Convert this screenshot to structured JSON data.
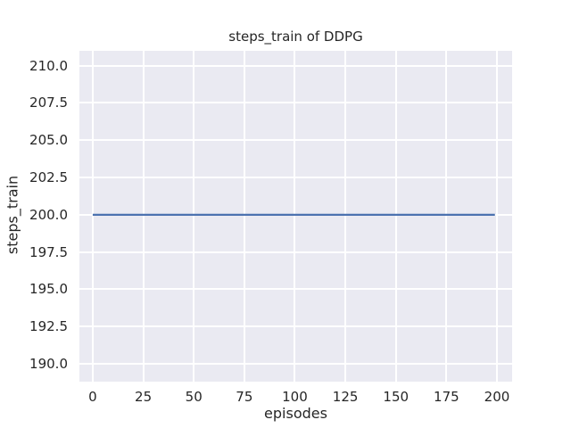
{
  "chart_data": {
    "type": "line",
    "title": "steps_train of DDPG",
    "xlabel": "episodes",
    "ylabel": "steps_train",
    "x_tick_values": [
      0,
      25,
      50,
      75,
      100,
      125,
      150,
      175,
      200
    ],
    "x_tick_labels": [
      "0",
      "25",
      "50",
      "75",
      "100",
      "125",
      "150",
      "175",
      "200"
    ],
    "y_tick_values": [
      190.0,
      192.5,
      195.0,
      197.5,
      200.0,
      202.5,
      205.0,
      207.5,
      210.0
    ],
    "y_tick_labels": [
      "190.0",
      "192.5",
      "195.0",
      "197.5",
      "200.0",
      "202.5",
      "205.0",
      "207.5",
      "210.0"
    ],
    "xlim": [
      -6.6,
      207.5
    ],
    "ylim": [
      188.8,
      211.0
    ],
    "grid": true,
    "legend": "none",
    "series": [
      {
        "name": "steps_train",
        "color": "#4C72B0",
        "x": [
          0,
          199
        ],
        "y": [
          200,
          200
        ]
      }
    ],
    "colors": {
      "figure_background": "#FFFFFF",
      "plot_background": "#EAEAF2",
      "gridline": "#FFFFFF",
      "text": "#262626"
    }
  }
}
